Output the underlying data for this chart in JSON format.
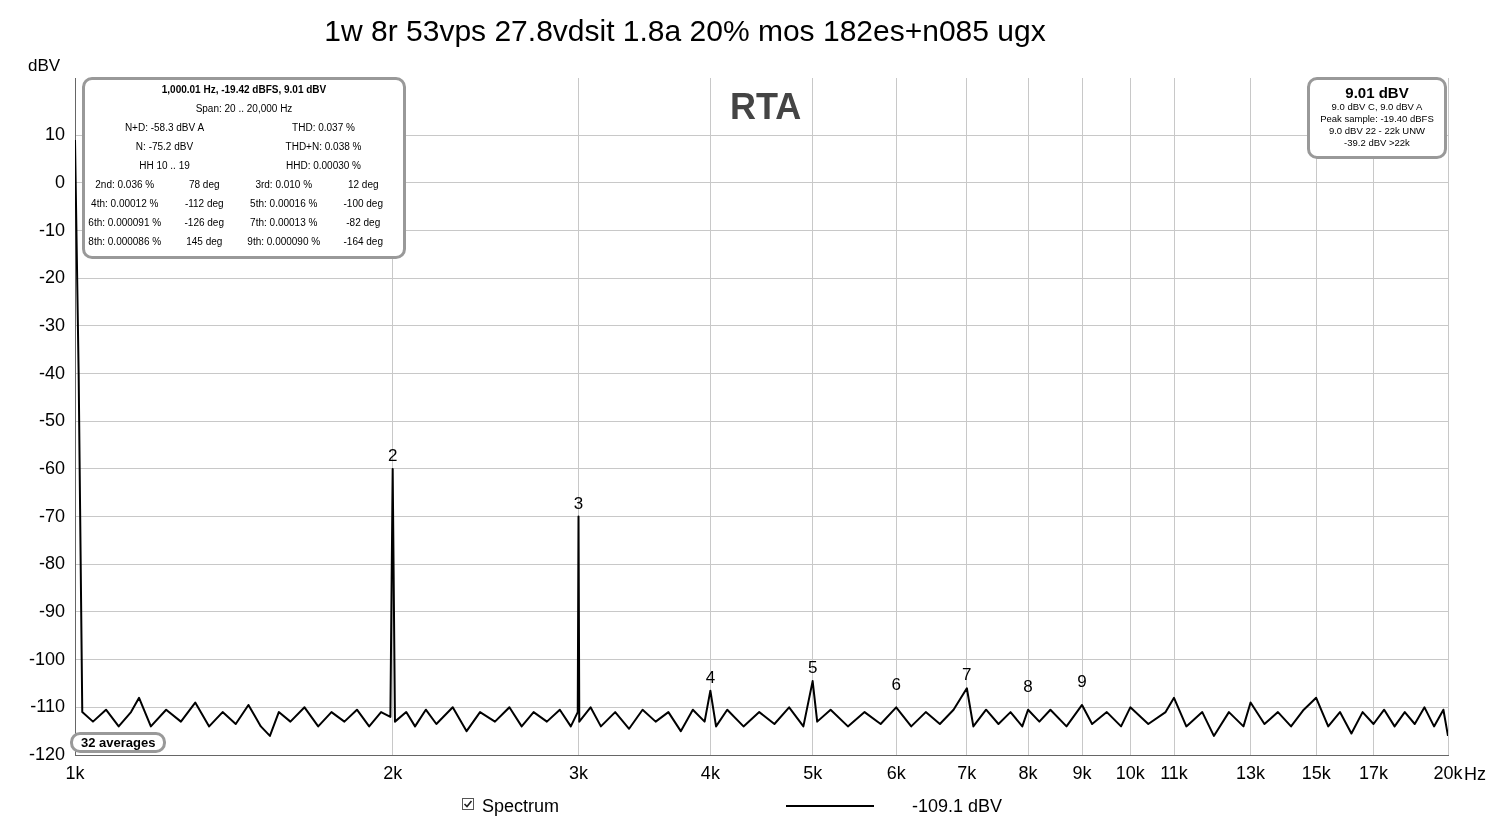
{
  "chart_data": {
    "type": "line",
    "title": "1w 8r 53vps 27.8vdsit 1.8a 20% mos 182es+n085 ugx",
    "ylabel": "dBV",
    "log": "x",
    "grid": true,
    "legend": "bottom",
    "marker": "none",
    "line_style": "solid",
    "xlim": [
      1000,
      20000
    ],
    "xticks": [
      {
        "value": 1000,
        "label": "1k"
      },
      {
        "value": 2000,
        "label": "2k"
      },
      {
        "value": 3000,
        "label": "3k"
      },
      {
        "value": 4000,
        "label": "4k"
      },
      {
        "value": 5000,
        "label": "5k"
      },
      {
        "value": 6000,
        "label": "6k"
      },
      {
        "value": 7000,
        "label": "7k"
      },
      {
        "value": 8000,
        "label": "8k"
      },
      {
        "value": 9000,
        "label": "9k"
      },
      {
        "value": 10000,
        "label": "10k"
      },
      {
        "value": 11000,
        "label": "11k"
      },
      {
        "value": 13000,
        "label": "13k"
      },
      {
        "value": 15000,
        "label": "15k"
      },
      {
        "value": 17000,
        "label": "17k"
      },
      {
        "value": 20000,
        "label": "20k"
      }
    ],
    "xlabel": "Hz",
    "ylim": [
      -120,
      22
    ],
    "yticks": [
      -120,
      -110,
      -100,
      -90,
      -80,
      -70,
      -60,
      -50,
      -40,
      -30,
      -20,
      -10,
      0,
      10
    ],
    "series": [
      {
        "name": "Spectrum",
        "color": "#000000",
        "x": [
          1000,
          1008,
          1016,
          1040,
          1070,
          1100,
          1130,
          1150,
          1180,
          1220,
          1260,
          1300,
          1340,
          1380,
          1420,
          1460,
          1500,
          1530,
          1560,
          1600,
          1650,
          1700,
          1750,
          1800,
          1850,
          1900,
          1950,
          1990,
          2000,
          2010,
          2060,
          2100,
          2150,
          2200,
          2280,
          2350,
          2420,
          2500,
          2580,
          2650,
          2720,
          2800,
          2880,
          2950,
          2995,
          3000,
          3005,
          3080,
          3150,
          3250,
          3350,
          3450,
          3550,
          3650,
          3750,
          3850,
          3950,
          4000,
          4050,
          4150,
          4300,
          4450,
          4600,
          4750,
          4900,
          5000,
          5050,
          5200,
          5400,
          5600,
          5800,
          6000,
          6200,
          6400,
          6600,
          6800,
          7000,
          7100,
          7300,
          7500,
          7700,
          7900,
          8000,
          8200,
          8400,
          8700,
          9000,
          9200,
          9500,
          9800,
          10000,
          10400,
          10800,
          11000,
          11300,
          11700,
          12000,
          12400,
          12800,
          13000,
          13400,
          13800,
          14200,
          14600,
          15000,
          15400,
          15800,
          16200,
          16600,
          17000,
          17400,
          17800,
          18200,
          18600,
          19000,
          19400,
          19800,
          20000
        ],
        "values": [
          9,
          -40,
          -111,
          -113,
          -110.5,
          -114,
          -111,
          -108,
          -114,
          -110.5,
          -113,
          -109,
          -114,
          -111,
          -113.5,
          -109.5,
          -114,
          -116,
          -111,
          -113,
          -110,
          -114,
          -111,
          -113,
          -110.5,
          -114,
          -111,
          -112,
          -60,
          -113,
          -111,
          -114,
          -110.5,
          -113.5,
          -110,
          -115,
          -111,
          -113,
          -110,
          -114,
          -111,
          -113,
          -110.5,
          -114,
          -111,
          -70,
          -113,
          -110,
          -114,
          -111,
          -114.5,
          -110.5,
          -113,
          -111,
          -115,
          -110.5,
          -113,
          -106.5,
          -114,
          -110.5,
          -114,
          -111,
          -113.5,
          -110,
          -114,
          -104.5,
          -113,
          -110.5,
          -114,
          -111,
          -113.5,
          -110,
          -114,
          -111,
          -113.5,
          -110.5,
          -106,
          -114,
          -110.5,
          -113.5,
          -111,
          -114,
          -110.5,
          -113,
          -110.5,
          -114,
          -109.5,
          -113.5,
          -111,
          -114,
          -110,
          -113.5,
          -111,
          -108,
          -114,
          -111,
          -116,
          -111,
          -114,
          -109,
          -113.5,
          -111,
          -114,
          -110.5,
          -108,
          -114,
          -111,
          -115.5,
          -111,
          -113.5,
          -110.5,
          -114,
          -111,
          -113.5,
          -110,
          -114,
          -110.5,
          -116
        ]
      }
    ],
    "annotations": [
      "RTA",
      "1,000.01 Hz, -19.42 dBFS, 9.01 dBV",
      "Span: 20 .. 20,000 Hz",
      "N+D: -58.3 dBV A",
      "THD: 0.037 %",
      "N: -75.2 dBV",
      "THD+N: 0.038 %",
      "HH 10 .. 19",
      "HHD: 0.00030 %",
      "2nd: 0.036 %",
      "78 deg",
      "3rd: 0.010 %",
      "12 deg",
      "4th: 0.00012 %",
      "-112 deg",
      "5th: 0.00016 %",
      "-100 deg",
      "6th: 0.000091 %",
      "-126 deg",
      "7th: 0.00013 %",
      "-82 deg",
      "8th: 0.000086 %",
      "145 deg",
      "9th: 0.000090 %",
      "-164 deg",
      "9.01 dBV",
      "9.0 dBV C, 9.0 dBV A",
      "Peak sample: -19.40 dBFS",
      "9.0 dBV 22 - 22k UNW",
      "-39.2 dBV >22k",
      "32 averages",
      "-109.1 dBV",
      {
        "text": "2",
        "x": 2000,
        "y": -60
      },
      {
        "text": "3",
        "x": 3000,
        "y": -70
      },
      {
        "text": "4",
        "x": 4000,
        "y": -106.5
      },
      {
        "text": "5",
        "x": 5000,
        "y": -104.5
      },
      {
        "text": "6",
        "x": 6000,
        "y": -110
      },
      {
        "text": "7",
        "x": 7000,
        "y": -106
      },
      {
        "text": "8",
        "x": 8000,
        "y": -110.5
      },
      {
        "text": "9",
        "x": 9000,
        "y": -109.5
      }
    ]
  }
}
